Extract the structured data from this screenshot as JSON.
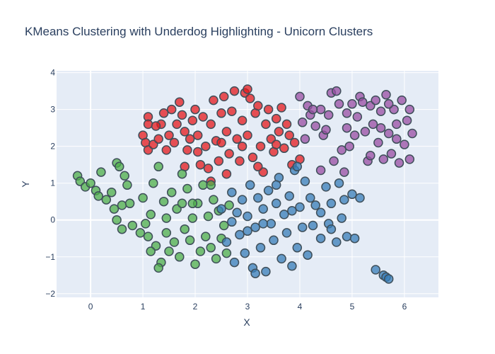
{
  "chart_data": {
    "type": "scatter",
    "title": "KMeans Clustering with Underdog Highlighting - Unicorn Clusters",
    "xlabel": "X",
    "ylabel": "Y",
    "xlim": [
      -0.65,
      6.65
    ],
    "ylim": [
      -2.1,
      4.05
    ],
    "x_ticks": [
      0,
      1,
      2,
      3,
      4,
      5,
      6
    ],
    "y_ticks": [
      -2,
      -1,
      0,
      1,
      2,
      3,
      4
    ],
    "grid": true,
    "legend": "none",
    "colors": {
      "plot_background": "#e5ecf6",
      "grid": "#ffffff",
      "marker_outline": "#3f4f5a",
      "text": "#2a3f5f"
    },
    "series": [
      {
        "color": "#e41a1c",
        "points": [
          [
            1.0,
            2.3
          ],
          [
            1.1,
            2.8
          ],
          [
            1.1,
            2.6
          ],
          [
            1.05,
            2.1
          ],
          [
            1.1,
            1.9
          ],
          [
            1.2,
            2.05
          ],
          [
            1.3,
            2.2
          ],
          [
            1.35,
            2.6
          ],
          [
            1.4,
            2.9
          ],
          [
            1.45,
            1.9
          ],
          [
            1.5,
            2.3
          ],
          [
            1.55,
            3.0
          ],
          [
            1.6,
            2.1
          ],
          [
            1.65,
            2.6
          ],
          [
            1.7,
            3.2
          ],
          [
            1.75,
            2.85
          ],
          [
            1.8,
            2.4
          ],
          [
            1.85,
            1.9
          ],
          [
            1.9,
            2.2
          ],
          [
            1.95,
            2.7
          ],
          [
            2.0,
            3.0
          ],
          [
            2.05,
            2.3
          ],
          [
            2.1,
            1.5
          ],
          [
            2.15,
            2.8
          ],
          [
            2.2,
            2.0
          ],
          [
            2.25,
            1.4
          ],
          [
            2.3,
            2.6
          ],
          [
            2.35,
            3.25
          ],
          [
            2.4,
            2.15
          ],
          [
            2.45,
            1.6
          ],
          [
            2.5,
            2.9
          ],
          [
            2.55,
            3.35
          ],
          [
            2.6,
            2.4
          ],
          [
            2.65,
            1.8
          ],
          [
            2.7,
            2.95
          ],
          [
            2.75,
            3.5
          ],
          [
            2.8,
            2.2
          ],
          [
            2.85,
            1.6
          ],
          [
            2.9,
            2.7
          ],
          [
            2.95,
            3.45
          ],
          [
            3.0,
            2.3
          ],
          [
            3.05,
            3.3
          ],
          [
            3.1,
            1.7
          ],
          [
            3.15,
            2.9
          ],
          [
            3.2,
            3.1
          ],
          [
            3.25,
            2.0
          ],
          [
            3.3,
            1.3
          ],
          [
            3.35,
            2.6
          ],
          [
            3.4,
            3.0
          ],
          [
            3.45,
            2.2
          ],
          [
            3.5,
            1.85
          ],
          [
            3.55,
            2.75
          ],
          [
            3.6,
            2.4
          ],
          [
            3.65,
            3.05
          ],
          [
            3.7,
            1.95
          ],
          [
            3.75,
            2.6
          ],
          [
            3.8,
            2.3
          ],
          [
            3.85,
            1.5
          ],
          [
            3.9,
            2.1
          ],
          [
            4.0,
            1.65
          ],
          [
            2.3,
            1.05
          ],
          [
            2.6,
            1.25
          ],
          [
            1.8,
            1.45
          ],
          [
            3.2,
            1.45
          ],
          [
            2.05,
            1.85
          ],
          [
            2.9,
            2.0
          ],
          [
            3.55,
            2.05
          ],
          [
            1.25,
            2.55
          ],
          [
            2.5,
            2.1
          ],
          [
            3.0,
            3.55
          ]
        ]
      },
      {
        "color": "#4daf4a",
        "points": [
          [
            -0.25,
            1.2
          ],
          [
            -0.2,
            1.05
          ],
          [
            -0.1,
            0.9
          ],
          [
            0.0,
            1.0
          ],
          [
            0.1,
            0.8
          ],
          [
            0.15,
            0.65
          ],
          [
            0.2,
            1.3
          ],
          [
            0.3,
            0.55
          ],
          [
            0.4,
            0.75
          ],
          [
            0.45,
            0.3
          ],
          [
            0.5,
            1.55
          ],
          [
            0.55,
            1.45
          ],
          [
            0.6,
            0.4
          ],
          [
            0.65,
            1.2
          ],
          [
            0.7,
            0.95
          ],
          [
            0.75,
            0.45
          ],
          [
            0.8,
            -0.15
          ],
          [
            0.6,
            -0.25
          ],
          [
            0.5,
            0.0
          ],
          [
            1.0,
            0.6
          ],
          [
            1.05,
            -0.1
          ],
          [
            1.1,
            -0.45
          ],
          [
            1.15,
            0.15
          ],
          [
            1.2,
            1.0
          ],
          [
            1.25,
            -0.7
          ],
          [
            1.3,
            1.45
          ],
          [
            1.35,
            -1.15
          ],
          [
            1.4,
            0.5
          ],
          [
            1.45,
            -0.35
          ],
          [
            1.5,
            -0.85
          ],
          [
            1.55,
            0.75
          ],
          [
            1.6,
            -0.6
          ],
          [
            1.65,
            0.3
          ],
          [
            1.7,
            -1.0
          ],
          [
            1.75,
            1.25
          ],
          [
            1.8,
            -0.25
          ],
          [
            1.85,
            0.85
          ],
          [
            1.9,
            -0.55
          ],
          [
            1.95,
            0.05
          ],
          [
            2.0,
            -1.2
          ],
          [
            2.05,
            0.45
          ],
          [
            2.1,
            -0.85
          ],
          [
            2.15,
            0.95
          ],
          [
            2.2,
            -0.45
          ],
          [
            2.25,
            0.1
          ],
          [
            2.3,
            -0.75
          ],
          [
            2.35,
            0.55
          ],
          [
            2.4,
            -1.05
          ],
          [
            2.45,
            0.25
          ],
          [
            2.5,
            -0.5
          ],
          [
            2.55,
            -0.15
          ],
          [
            2.6,
            -0.9
          ],
          [
            2.65,
            0.4
          ],
          [
            1.3,
            -1.3
          ],
          [
            1.15,
            -0.85
          ],
          [
            0.95,
            -0.35
          ],
          [
            1.75,
            0.45
          ],
          [
            2.3,
            0.95
          ],
          [
            1.45,
            0.05
          ],
          [
            1.95,
            0.45
          ]
        ]
      },
      {
        "color": "#377eb8",
        "points": [
          [
            2.5,
            0.3
          ],
          [
            2.6,
            -0.6
          ],
          [
            2.7,
            0.75
          ],
          [
            2.75,
            -1.15
          ],
          [
            2.8,
            0.2
          ],
          [
            2.85,
            -0.4
          ],
          [
            2.9,
            0.55
          ],
          [
            2.95,
            -0.9
          ],
          [
            3.0,
            0.1
          ],
          [
            3.05,
            0.95
          ],
          [
            3.1,
            -1.3
          ],
          [
            3.15,
            -0.2
          ],
          [
            3.2,
            0.6
          ],
          [
            3.25,
            -0.75
          ],
          [
            3.3,
            0.3
          ],
          [
            3.35,
            -1.4
          ],
          [
            3.4,
            0.8
          ],
          [
            3.45,
            -0.1
          ],
          [
            3.5,
            -0.55
          ],
          [
            3.55,
            0.45
          ],
          [
            3.6,
            1.15
          ],
          [
            3.65,
            -1.05
          ],
          [
            3.7,
            0.15
          ],
          [
            3.75,
            -0.35
          ],
          [
            3.8,
            0.65
          ],
          [
            3.85,
            -1.25
          ],
          [
            3.9,
            1.35
          ],
          [
            3.95,
            -0.75
          ],
          [
            4.0,
            0.35
          ],
          [
            4.05,
            -0.2
          ],
          [
            4.1,
            1.05
          ],
          [
            4.15,
            -0.95
          ],
          [
            4.2,
            0.6
          ],
          [
            4.3,
            0.4
          ],
          [
            4.4,
            -0.5
          ],
          [
            4.5,
            0.9
          ],
          [
            4.55,
            -0.1
          ],
          [
            4.6,
            0.45
          ],
          [
            4.7,
            -0.6
          ],
          [
            4.75,
            1.0
          ],
          [
            4.8,
            0.05
          ],
          [
            4.9,
            -0.45
          ],
          [
            5.0,
            0.7
          ],
          [
            5.05,
            -0.5
          ],
          [
            5.15,
            0.6
          ],
          [
            4.85,
            0.55
          ],
          [
            4.4,
            0.2
          ],
          [
            4.25,
            -0.15
          ],
          [
            5.45,
            -1.35
          ],
          [
            5.6,
            -1.5
          ],
          [
            5.65,
            -1.55
          ],
          [
            5.7,
            -1.6
          ],
          [
            3.0,
            -0.3
          ],
          [
            3.3,
            -0.1
          ],
          [
            2.7,
            -0.05
          ],
          [
            3.55,
            0.95
          ],
          [
            3.85,
            0.25
          ],
          [
            4.6,
            -0.25
          ],
          [
            3.15,
            -1.45
          ],
          [
            3.95,
            1.45
          ]
        ]
      },
      {
        "color": "#984ea3",
        "points": [
          [
            4.0,
            3.35
          ],
          [
            4.05,
            2.65
          ],
          [
            4.1,
            2.2
          ],
          [
            4.15,
            3.1
          ],
          [
            4.2,
            2.85
          ],
          [
            4.3,
            2.55
          ],
          [
            4.4,
            3.0
          ],
          [
            4.45,
            2.3
          ],
          [
            4.5,
            2.45
          ],
          [
            4.55,
            2.85
          ],
          [
            4.6,
            3.45
          ],
          [
            4.7,
            3.5
          ],
          [
            4.75,
            3.15
          ],
          [
            4.8,
            1.9
          ],
          [
            4.9,
            2.9
          ],
          [
            4.95,
            2.0
          ],
          [
            5.0,
            3.15
          ],
          [
            5.1,
            2.8
          ],
          [
            5.15,
            3.35
          ],
          [
            5.2,
            3.2
          ],
          [
            5.25,
            2.4
          ],
          [
            5.3,
            1.6
          ],
          [
            5.35,
            3.1
          ],
          [
            5.4,
            2.6
          ],
          [
            5.45,
            3.25
          ],
          [
            5.5,
            2.1
          ],
          [
            5.55,
            2.95
          ],
          [
            5.6,
            1.65
          ],
          [
            5.65,
            3.4
          ],
          [
            5.7,
            2.35
          ],
          [
            5.75,
            1.8
          ],
          [
            5.8,
            3.0
          ],
          [
            5.85,
            2.6
          ],
          [
            5.9,
            1.55
          ],
          [
            5.95,
            3.25
          ],
          [
            6.0,
            2.05
          ],
          [
            6.05,
            2.7
          ],
          [
            6.1,
            1.65
          ],
          [
            6.15,
            2.35
          ],
          [
            5.55,
            2.5
          ],
          [
            4.65,
            1.6
          ],
          [
            4.25,
            3.0
          ],
          [
            5.05,
            2.3
          ],
          [
            5.7,
            3.15
          ],
          [
            6.1,
            3.0
          ],
          [
            5.35,
            1.75
          ],
          [
            4.9,
            2.5
          ],
          [
            5.85,
            2.2
          ],
          [
            4.4,
            1.35
          ],
          [
            4.85,
            1.3
          ]
        ]
      }
    ]
  }
}
